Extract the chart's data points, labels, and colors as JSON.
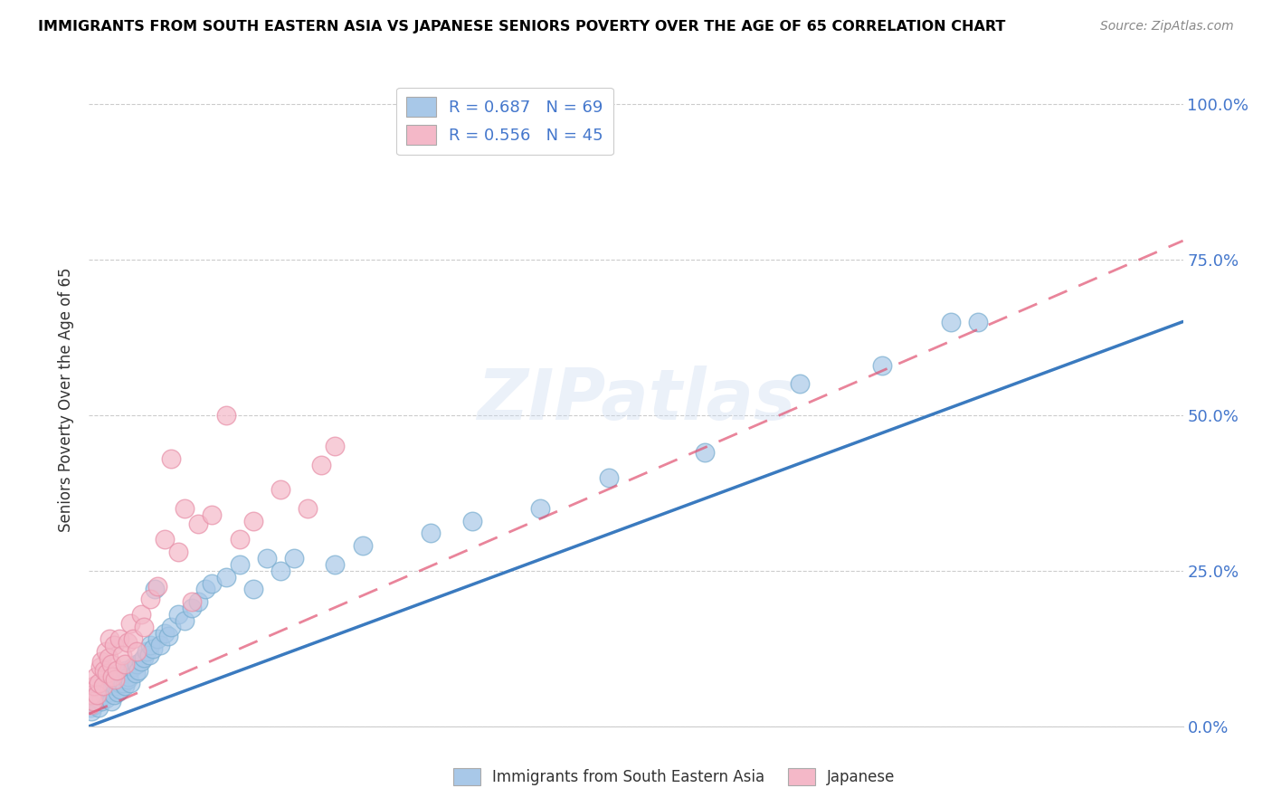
{
  "title": "IMMIGRANTS FROM SOUTH EASTERN ASIA VS JAPANESE SENIORS POVERTY OVER THE AGE OF 65 CORRELATION CHART",
  "source": "Source: ZipAtlas.com",
  "ylabel": "Seniors Poverty Over the Age of 65",
  "yticks": [
    "0.0%",
    "25.0%",
    "50.0%",
    "75.0%",
    "100.0%"
  ],
  "ytick_vals": [
    0,
    25,
    50,
    75,
    100
  ],
  "blue_R": "R = 0.687",
  "blue_N": "N = 69",
  "pink_R": "R = 0.556",
  "pink_N": "N = 45",
  "blue_color": "#a8c8e8",
  "pink_color": "#f4b8c8",
  "blue_edge_color": "#7aaed0",
  "pink_edge_color": "#e890a8",
  "blue_line_color": "#3a7abf",
  "pink_line_color": "#e05070",
  "legend_blue_label": "Immigrants from South Eastern Asia",
  "legend_pink_label": "Japanese",
  "watermark": "ZIPatlas",
  "blue_scatter_x": [
    0.1,
    0.2,
    0.3,
    0.4,
    0.5,
    0.6,
    0.7,
    0.8,
    0.9,
    1.0,
    1.1,
    1.2,
    1.3,
    1.4,
    1.5,
    1.6,
    1.7,
    1.8,
    1.9,
    2.0,
    2.1,
    2.2,
    2.3,
    2.4,
    2.5,
    2.6,
    2.7,
    2.8,
    2.9,
    3.0,
    3.2,
    3.4,
    3.5,
    3.6,
    3.8,
    4.0,
    4.2,
    4.4,
    4.5,
    4.7,
    4.8,
    5.0,
    5.2,
    5.5,
    5.8,
    6.0,
    6.5,
    7.0,
    7.5,
    8.0,
    8.5,
    9.0,
    10.0,
    11.0,
    12.0,
    13.0,
    14.0,
    15.0,
    18.0,
    20.0,
    25.0,
    28.0,
    33.0,
    38.0,
    45.0,
    52.0,
    58.0,
    63.0,
    65.0
  ],
  "blue_scatter_y": [
    3.0,
    2.5,
    4.0,
    3.5,
    5.0,
    4.5,
    3.0,
    5.5,
    4.0,
    6.0,
    5.0,
    4.5,
    7.0,
    5.5,
    6.0,
    4.0,
    7.5,
    5.0,
    6.5,
    8.0,
    5.5,
    7.0,
    6.0,
    8.5,
    7.0,
    6.5,
    9.0,
    7.5,
    8.0,
    7.0,
    9.5,
    8.5,
    10.0,
    9.0,
    10.5,
    11.0,
    12.0,
    11.5,
    13.0,
    12.5,
    22.0,
    14.0,
    13.0,
    15.0,
    14.5,
    16.0,
    18.0,
    17.0,
    19.0,
    20.0,
    22.0,
    23.0,
    24.0,
    26.0,
    22.0,
    27.0,
    25.0,
    27.0,
    26.0,
    29.0,
    31.0,
    33.0,
    35.0,
    40.0,
    44.0,
    55.0,
    58.0,
    65.0,
    65.0
  ],
  "pink_scatter_x": [
    0.1,
    0.2,
    0.3,
    0.4,
    0.5,
    0.6,
    0.7,
    0.8,
    0.9,
    1.0,
    1.1,
    1.2,
    1.3,
    1.4,
    1.5,
    1.6,
    1.7,
    1.8,
    1.9,
    2.0,
    2.2,
    2.4,
    2.6,
    2.8,
    3.0,
    3.2,
    3.5,
    3.8,
    4.0,
    4.5,
    5.0,
    5.5,
    6.0,
    6.5,
    7.0,
    7.5,
    8.0,
    9.0,
    10.0,
    11.0,
    12.0,
    14.0,
    16.0,
    17.0,
    18.0
  ],
  "pink_scatter_y": [
    3.5,
    5.0,
    4.0,
    6.5,
    8.0,
    5.0,
    7.0,
    9.5,
    10.5,
    6.5,
    9.0,
    12.0,
    8.5,
    11.0,
    14.0,
    10.0,
    8.0,
    13.0,
    7.5,
    9.0,
    14.0,
    11.5,
    10.0,
    13.5,
    16.5,
    14.0,
    12.0,
    18.0,
    16.0,
    20.5,
    22.5,
    30.0,
    43.0,
    28.0,
    35.0,
    20.0,
    32.5,
    34.0,
    50.0,
    30.0,
    33.0,
    38.0,
    35.0,
    42.0,
    45.0
  ],
  "xmin": 0,
  "xmax": 80,
  "ymin": 0,
  "ymax": 105,
  "blue_line_x0": 0,
  "blue_line_x1": 80,
  "blue_line_y0": 0,
  "blue_line_y1": 65,
  "pink_line_x0": 0,
  "pink_line_x1": 80,
  "pink_line_y0": 2,
  "pink_line_y1": 78
}
